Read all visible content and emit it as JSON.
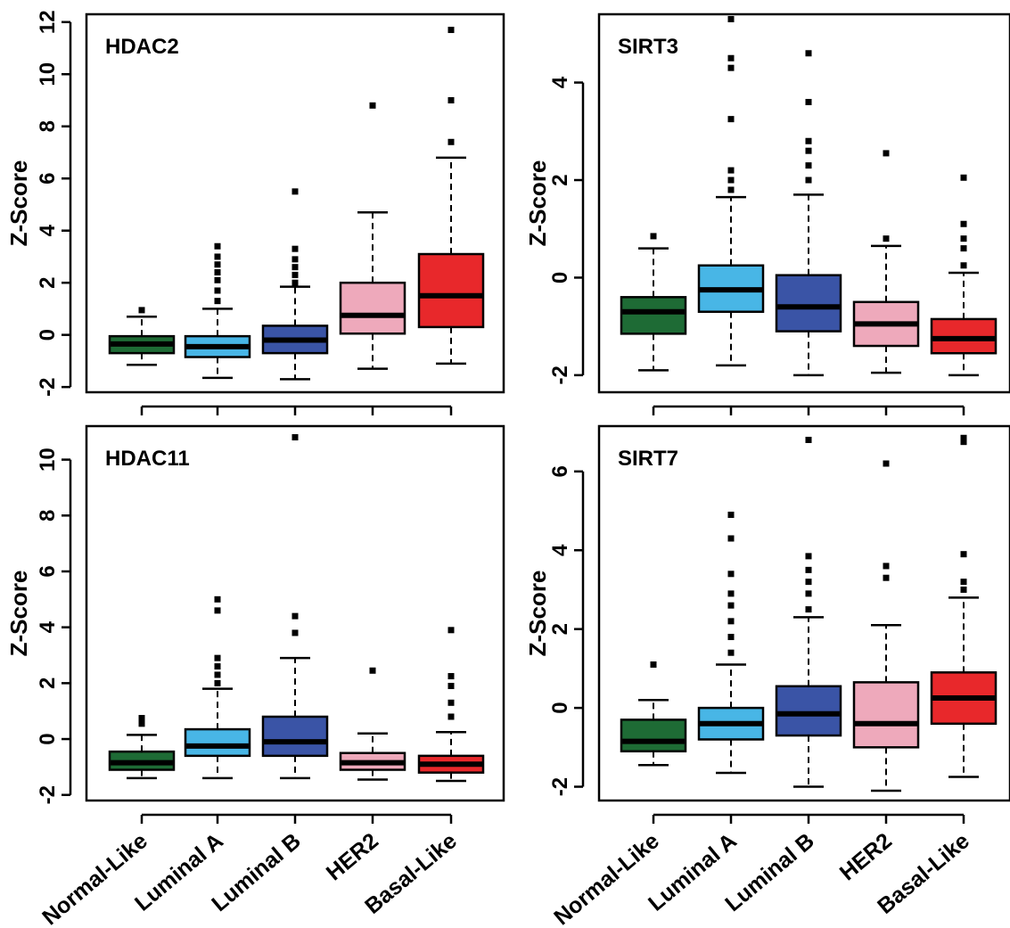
{
  "chart_data": [
    {
      "type": "boxplot",
      "title": "HDAC2",
      "ylabel": "Z-Score",
      "xlabel": "",
      "ylim": [
        -2.2,
        12.3
      ],
      "yticks": [
        -2,
        0,
        2,
        4,
        6,
        8,
        10,
        12
      ],
      "yticklabels": [
        "-2",
        "0",
        "2",
        "4",
        "6",
        "8",
        "10",
        "12"
      ],
      "categories": [
        "Normal-Like",
        "Luminal A",
        "Luminal B",
        "HER2",
        "Basal-Like"
      ],
      "boxes": [
        {
          "whisker_low": -1.15,
          "q1": -0.7,
          "median": -0.35,
          "q3": -0.05,
          "whisker_high": 0.7,
          "outliers": [
            0.95
          ]
        },
        {
          "whisker_low": -1.65,
          "q1": -0.85,
          "median": -0.45,
          "q3": -0.05,
          "whisker_high": 1.0,
          "outliers": [
            1.3,
            1.7,
            2.1,
            2.4,
            2.7,
            3.0,
            3.4
          ]
        },
        {
          "whisker_low": -1.7,
          "q1": -0.7,
          "median": -0.2,
          "q3": 0.35,
          "whisker_high": 1.85,
          "outliers": [
            2.0,
            2.3,
            2.6,
            2.9,
            3.3,
            5.5
          ]
        },
        {
          "whisker_low": -1.3,
          "q1": 0.05,
          "median": 0.75,
          "q3": 2.0,
          "whisker_high": 4.7,
          "outliers": [
            8.8
          ]
        },
        {
          "whisker_low": -1.1,
          "q1": 0.3,
          "median": 1.5,
          "q3": 3.1,
          "whisker_high": 6.8,
          "outliers": [
            7.4,
            9.0,
            11.7
          ]
        }
      ]
    },
    {
      "type": "boxplot",
      "title": "SIRT3",
      "ylabel": "Z-Score",
      "xlabel": "",
      "ylim": [
        -2.35,
        5.4
      ],
      "yticks": [
        -2,
        0,
        2,
        4
      ],
      "yticklabels": [
        "-2",
        "0",
        "2",
        "4"
      ],
      "categories": [
        "Normal-Like",
        "Luminal A",
        "Luminal B",
        "HER2",
        "Basal-Like"
      ],
      "boxes": [
        {
          "whisker_low": -1.9,
          "q1": -1.15,
          "median": -0.7,
          "q3": -0.4,
          "whisker_high": 0.6,
          "outliers": [
            0.85
          ]
        },
        {
          "whisker_low": -1.8,
          "q1": -0.7,
          "median": -0.25,
          "q3": 0.25,
          "whisker_high": 1.65,
          "outliers": [
            1.8,
            2.0,
            2.2,
            3.25,
            4.3,
            4.5,
            5.3
          ]
        },
        {
          "whisker_low": -2.0,
          "q1": -1.1,
          "median": -0.6,
          "q3": 0.05,
          "whisker_high": 1.7,
          "outliers": [
            2.0,
            2.3,
            2.6,
            2.8,
            3.6,
            4.6
          ]
        },
        {
          "whisker_low": -1.95,
          "q1": -1.4,
          "median": -0.95,
          "q3": -0.5,
          "whisker_high": 0.65,
          "outliers": [
            0.8,
            2.55
          ]
        },
        {
          "whisker_low": -2.0,
          "q1": -1.55,
          "median": -1.25,
          "q3": -0.85,
          "whisker_high": 0.1,
          "outliers": [
            0.25,
            0.6,
            0.8,
            1.1,
            2.05
          ]
        }
      ]
    },
    {
      "type": "boxplot",
      "title": "HDAC11",
      "ylabel": "Z-Score",
      "xlabel": "",
      "ylim": [
        -2.2,
        11.2
      ],
      "yticks": [
        -2,
        0,
        2,
        4,
        6,
        8,
        10
      ],
      "yticklabels": [
        "-2",
        "0",
        "2",
        "4",
        "6",
        "8",
        "10"
      ],
      "categories": [
        "Normal-Like",
        "Luminal A",
        "Luminal B",
        "HER2",
        "Basal-Like"
      ],
      "boxes": [
        {
          "whisker_low": -1.4,
          "q1": -1.1,
          "median": -0.85,
          "q3": -0.45,
          "whisker_high": 0.15,
          "outliers": [
            0.55,
            0.75
          ]
        },
        {
          "whisker_low": -1.4,
          "q1": -0.6,
          "median": -0.25,
          "q3": 0.35,
          "whisker_high": 1.8,
          "outliers": [
            2.0,
            2.3,
            2.6,
            2.9,
            4.6,
            5.0
          ]
        },
        {
          "whisker_low": -1.4,
          "q1": -0.6,
          "median": -0.1,
          "q3": 0.8,
          "whisker_high": 2.9,
          "outliers": [
            3.8,
            4.4,
            10.8
          ]
        },
        {
          "whisker_low": -1.45,
          "q1": -1.1,
          "median": -0.85,
          "q3": -0.5,
          "whisker_high": 0.2,
          "outliers": [
            2.45
          ]
        },
        {
          "whisker_low": -1.5,
          "q1": -1.2,
          "median": -0.9,
          "q3": -0.6,
          "whisker_high": 0.25,
          "outliers": [
            0.8,
            1.3,
            1.9,
            2.25,
            3.9
          ]
        }
      ]
    },
    {
      "type": "boxplot",
      "title": "SIRT7",
      "ylabel": "Z-Score",
      "xlabel": "",
      "ylim": [
        -2.35,
        7.15
      ],
      "yticks": [
        -2,
        0,
        2,
        4,
        6
      ],
      "yticklabels": [
        "-2",
        "0",
        "2",
        "4",
        "6"
      ],
      "categories": [
        "Normal-Like",
        "Luminal A",
        "Luminal B",
        "HER2",
        "Basal-Like"
      ],
      "boxes": [
        {
          "whisker_low": -1.45,
          "q1": -1.1,
          "median": -0.85,
          "q3": -0.3,
          "whisker_high": 0.2,
          "outliers": [
            1.1
          ]
        },
        {
          "whisker_low": -1.65,
          "q1": -0.8,
          "median": -0.4,
          "q3": 0.0,
          "whisker_high": 1.1,
          "outliers": [
            1.4,
            1.8,
            2.2,
            2.6,
            2.9,
            3.4,
            4.3,
            4.9
          ]
        },
        {
          "whisker_low": -2.0,
          "q1": -0.7,
          "median": -0.15,
          "q3": 0.55,
          "whisker_high": 2.3,
          "outliers": [
            2.5,
            2.9,
            3.2,
            3.5,
            3.85,
            6.8
          ]
        },
        {
          "whisker_low": -2.1,
          "q1": -1.0,
          "median": -0.4,
          "q3": 0.65,
          "whisker_high": 2.1,
          "outliers": [
            3.3,
            3.6,
            6.2
          ]
        },
        {
          "whisker_low": -1.75,
          "q1": -0.4,
          "median": 0.25,
          "q3": 0.9,
          "whisker_high": 2.8,
          "outliers": [
            3.0,
            3.2,
            3.9,
            6.75,
            6.85
          ]
        }
      ]
    }
  ],
  "colors": {
    "Normal-Like": "#1e6b35",
    "Luminal A": "#48b6e6",
    "Luminal B": "#3a54a6",
    "HER2": "#eea9bb",
    "Basal-Like": "#e8282b",
    "axis": "#000000"
  }
}
